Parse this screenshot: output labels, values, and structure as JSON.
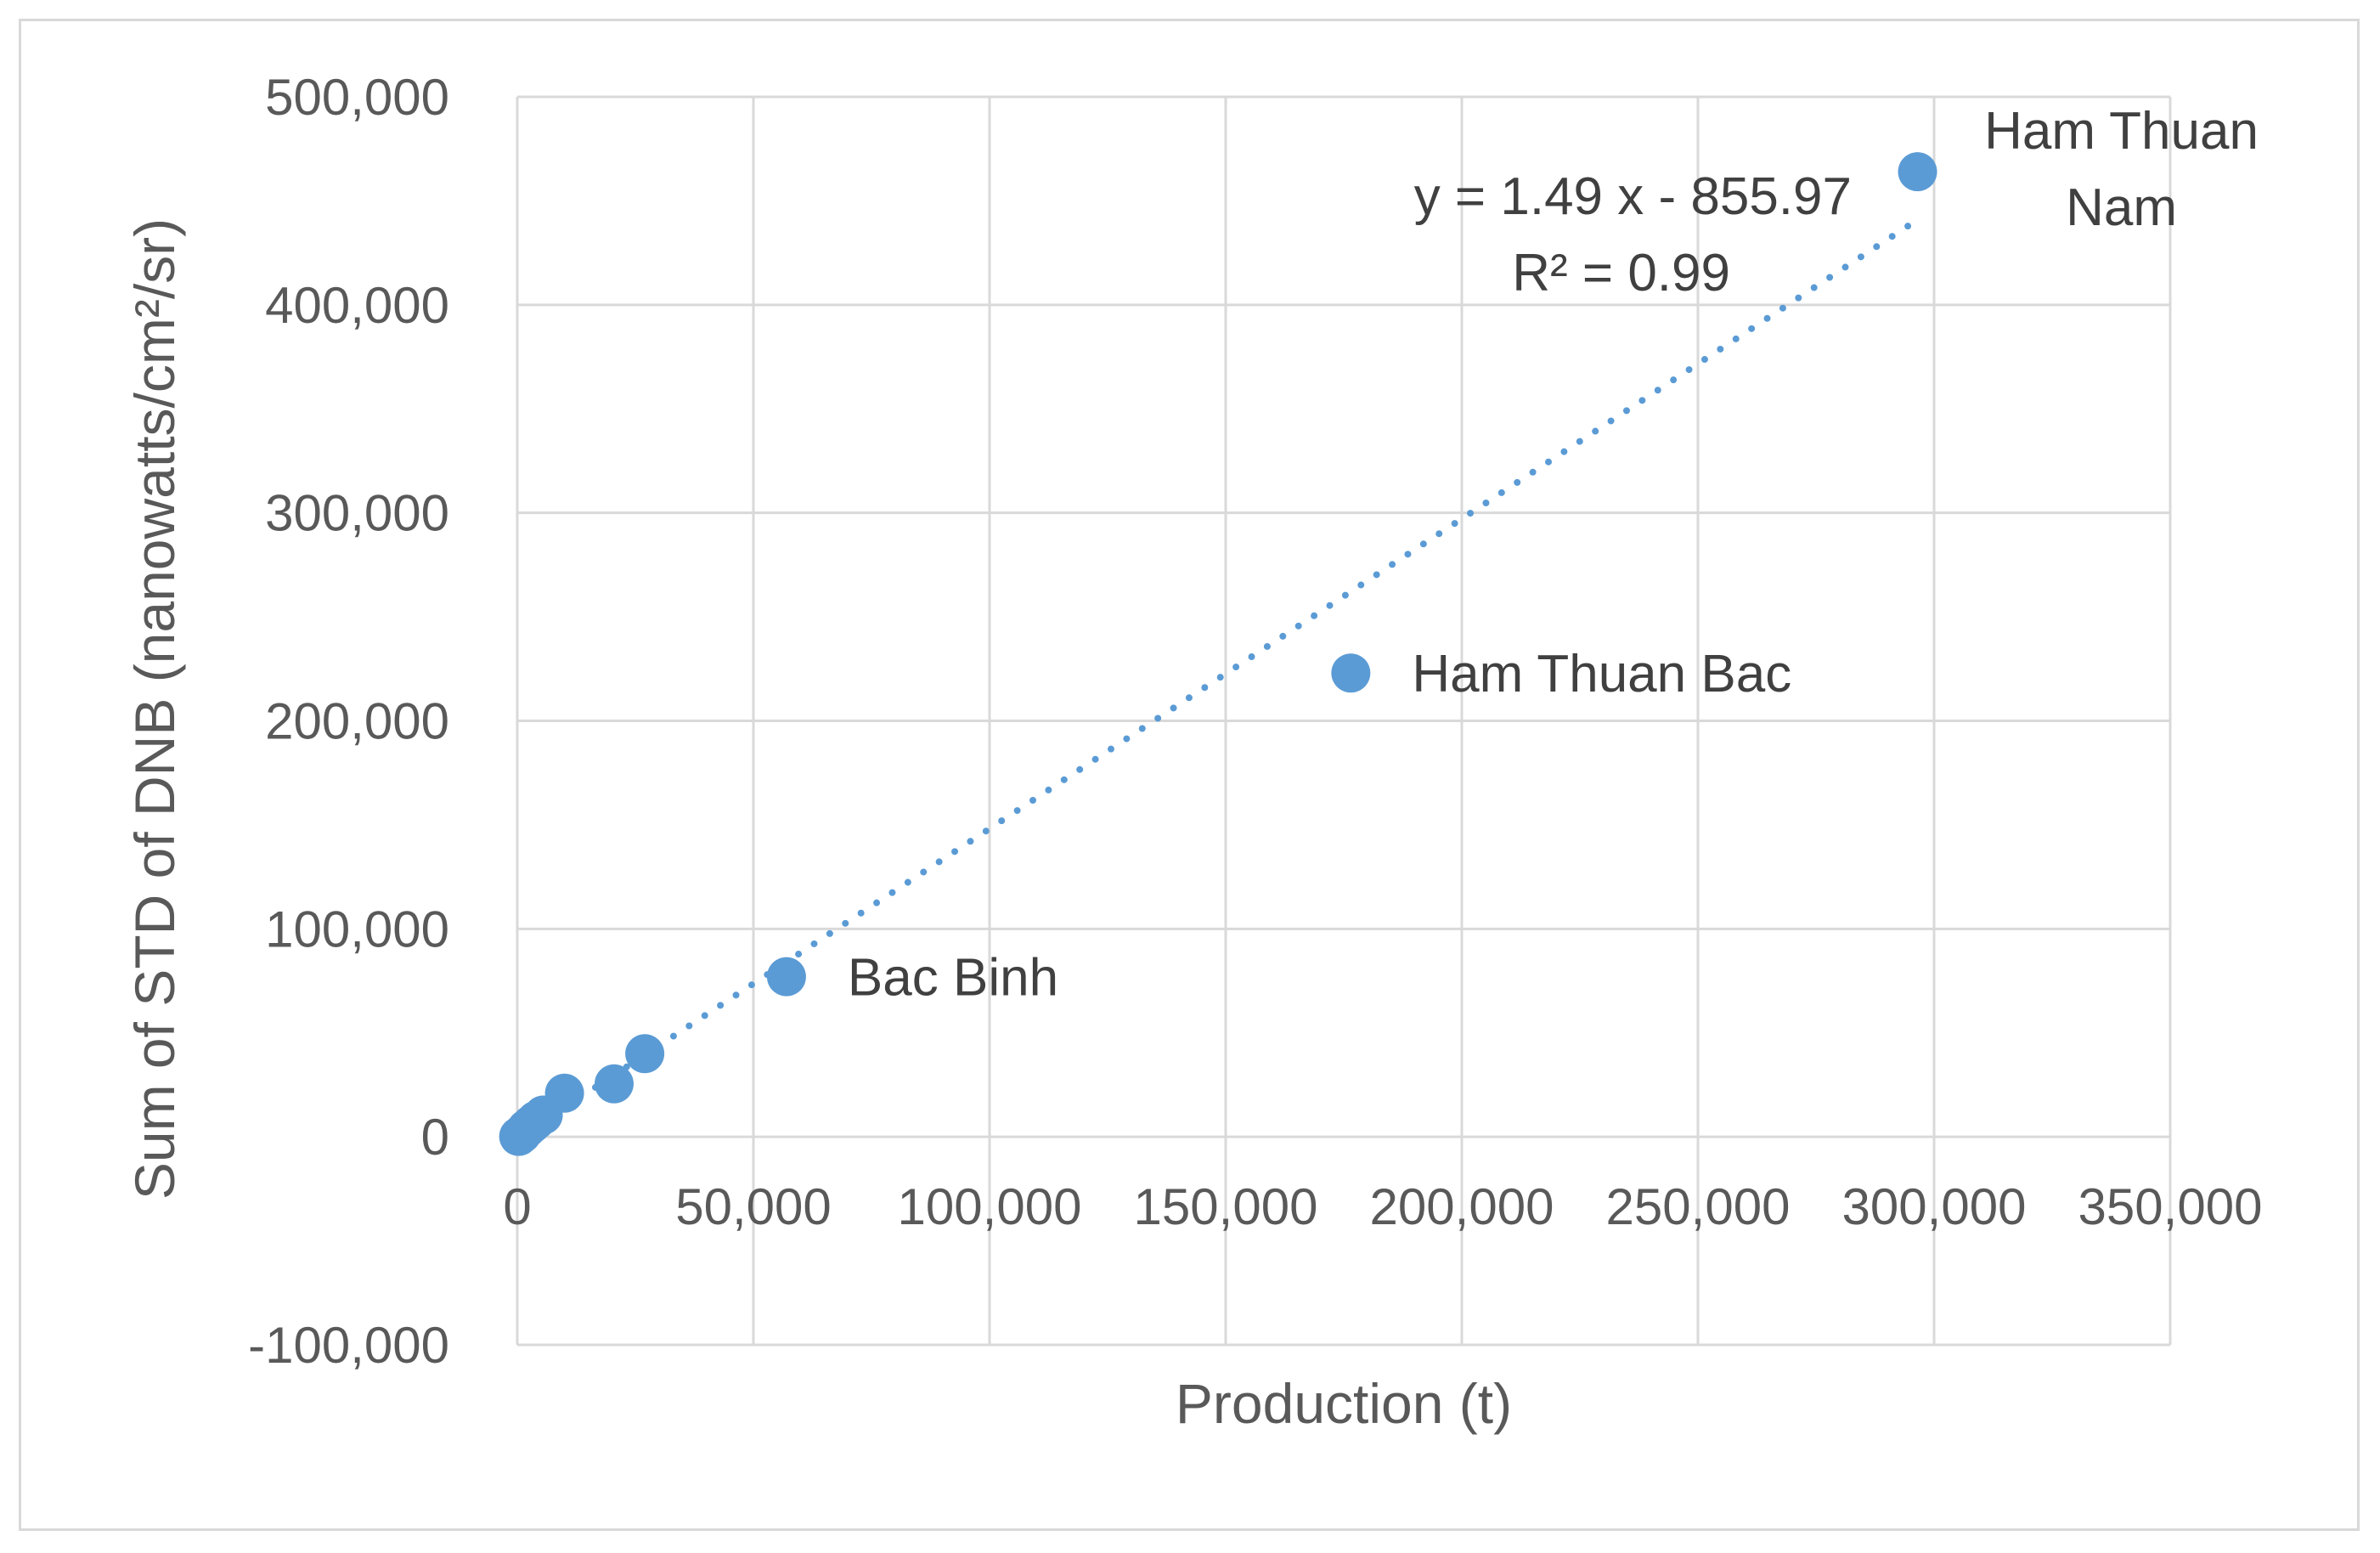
{
  "chart_data": {
    "type": "scatter",
    "title": "",
    "xlabel": "Production (t)",
    "ylabel": "Sum of STD of DNB (nanowatts/cm²/sr)",
    "xlim": [
      0,
      350000
    ],
    "ylim": [
      -100000,
      500000
    ],
    "x_ticks": [
      0,
      50000,
      100000,
      150000,
      200000,
      250000,
      300000,
      350000
    ],
    "y_ticks": [
      -100000,
      0,
      100000,
      200000,
      300000,
      400000,
      500000
    ],
    "x_tick_labels": [
      "0",
      "50,000",
      "100,000",
      "150,000",
      "200,000",
      "250,000",
      "300,000",
      "350,000"
    ],
    "y_tick_labels": [
      "-100,000",
      "0",
      "100,000",
      "200,000",
      "300,000",
      "400,000",
      "500,000"
    ],
    "grid": true,
    "marker_color": "#5b9bd5",
    "trendline_color": "#5b9bd5",
    "series": [
      {
        "points": [
          {
            "x": 300,
            "y": 200
          },
          {
            "x": 1000,
            "y": 1500
          },
          {
            "x": 2000,
            "y": 4000
          },
          {
            "x": 3000,
            "y": 6000
          },
          {
            "x": 4000,
            "y": 8000
          },
          {
            "x": 5500,
            "y": 10500
          },
          {
            "x": 10000,
            "y": 21000
          },
          {
            "x": 20500,
            "y": 25500
          },
          {
            "x": 27000,
            "y": 40000
          },
          {
            "x": 57000,
            "y": 77000,
            "label": "Bac Binh"
          },
          {
            "x": 176500,
            "y": 223000,
            "label": "Ham Thuan Bac"
          },
          {
            "x": 296500,
            "y": 464000,
            "label_lines": [
              "Ham Thuan",
              "Nam"
            ]
          }
        ]
      }
    ],
    "trendline": {
      "type": "linear",
      "slope": 1.49,
      "intercept": -855.97,
      "x_range": [
        0,
        296500
      ],
      "equation": "y = 1.49 x - 855.97",
      "r_squared": "R² = 0.99"
    }
  }
}
